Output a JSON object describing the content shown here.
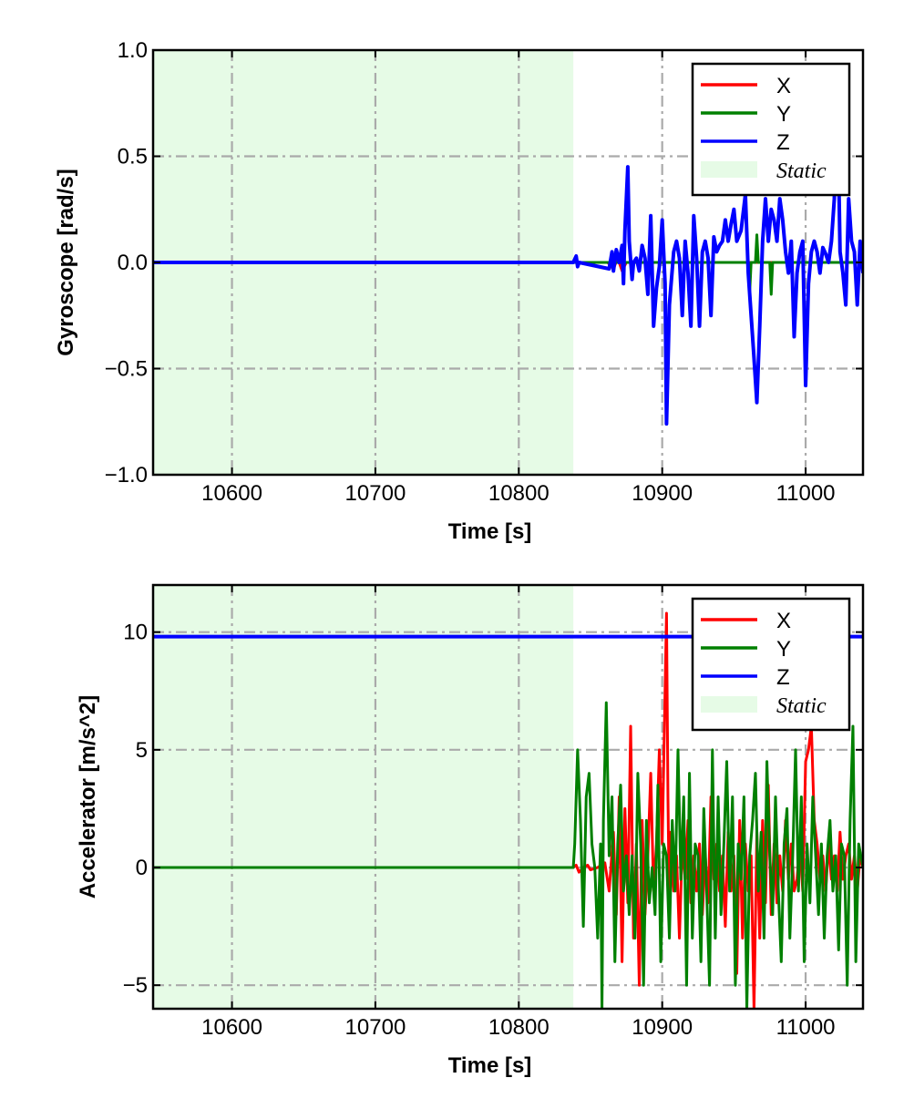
{
  "chart_data": [
    {
      "type": "line",
      "ylabel": "Gyroscope [rad/s]",
      "xlabel": "Time [s]",
      "xlim": [
        10545,
        11040
      ],
      "ylim": [
        -1.0,
        1.0
      ],
      "xticks": [
        10600,
        10700,
        10800,
        10900,
        11000
      ],
      "xtick_labels": [
        "10600",
        "10700",
        "10800",
        "10900",
        "11000"
      ],
      "yticks": [
        -1.0,
        -0.5,
        0.0,
        0.5,
        1.0
      ],
      "ytick_labels": [
        "−1.0",
        "−0.5",
        "0.0",
        "0.5",
        "1.0"
      ],
      "grid": true,
      "legend_position": "top-right",
      "static_region": {
        "label": "Static",
        "x_start": 10545,
        "x_end": 10838,
        "color": "#e6fbe6"
      },
      "series": [
        {
          "name": "X",
          "color": "#ff0000",
          "x": [
            10545,
            10838,
            10862,
            10866,
            10869,
            10872,
            10875,
            10880,
            11040
          ],
          "y": [
            0.0,
            0.0,
            0.0,
            -0.03,
            0.02,
            -0.04,
            0.0,
            0.0,
            0.0
          ]
        },
        {
          "name": "Y",
          "color": "#008000",
          "x": [
            10545,
            10838,
            10950,
            10960,
            10961,
            10962,
            10965,
            10966,
            10967,
            10970,
            10975,
            10976,
            10977,
            10978,
            11040
          ],
          "y": [
            0.0,
            0.0,
            0.0,
            0.0,
            -0.14,
            0.0,
            0.0,
            0.13,
            0.0,
            0.0,
            0.0,
            -0.15,
            0.0,
            0.0,
            0.0
          ]
        },
        {
          "name": "Z",
          "color": "#0000ff",
          "x": [
            10545,
            10838,
            10840,
            10841,
            10842,
            10863,
            10865,
            10866,
            10868,
            10870,
            10872,
            10873,
            10874,
            10876,
            10877,
            10879,
            10880,
            10882,
            10884,
            10886,
            10888,
            10890,
            10892,
            10894,
            10896,
            10898,
            10900,
            10902,
            10903,
            10905,
            10908,
            10910,
            10912,
            10914,
            10916,
            10918,
            10920,
            10922,
            10924,
            10926,
            10928,
            10930,
            10932,
            10934,
            10936,
            10938,
            10940,
            10942,
            10944,
            10946,
            10948,
            10950,
            10952,
            10955,
            10958,
            10960,
            10962,
            10964,
            10966,
            10968,
            10970,
            10972,
            10974,
            10976,
            10978,
            10980,
            10982,
            10984,
            10986,
            10988,
            10990,
            10992,
            10994,
            10996,
            10998,
            11000,
            11002,
            11004,
            11006,
            11008,
            11010,
            11012,
            11014,
            11016,
            11018,
            11020,
            11022,
            11024,
            11026,
            11028,
            11030,
            11032,
            11034,
            11036,
            11038,
            11040
          ],
          "y": [
            0.0,
            0.0,
            0.03,
            -0.02,
            0.0,
            -0.03,
            0.05,
            -0.04,
            0.06,
            0.0,
            0.08,
            -0.1,
            0.15,
            0.45,
            0.1,
            -0.08,
            0.0,
            0.02,
            -0.04,
            0.08,
            0.02,
            -0.15,
            0.22,
            -0.3,
            -0.12,
            -0.02,
            0.2,
            -0.1,
            -0.76,
            -0.2,
            0.05,
            0.1,
            0.02,
            -0.25,
            0.1,
            -0.05,
            -0.3,
            0.22,
            0.02,
            -0.3,
            0.05,
            0.1,
            0.02,
            -0.25,
            0.12,
            0.05,
            0.08,
            0.1,
            0.2,
            0.1,
            0.18,
            0.25,
            0.1,
            0.15,
            0.32,
            -0.05,
            -0.25,
            -0.45,
            -0.66,
            -0.3,
            0.1,
            0.3,
            0.1,
            0.25,
            0.2,
            0.1,
            0.3,
            0.2,
            0.05,
            -0.05,
            0.1,
            -0.35,
            -0.05,
            0.05,
            0.1,
            -0.58,
            -0.1,
            0.05,
            0.1,
            0.05,
            -0.05,
            0.07,
            0.04,
            0.0,
            0.1,
            0.3,
            0.85,
            0.05,
            -0.05,
            -0.2,
            0.3,
            0.1,
            0.05,
            -0.2,
            0.1,
            -0.05
          ]
        }
      ]
    },
    {
      "type": "line",
      "ylabel": "Accelerator [m/s^2]",
      "xlabel": "Time [s]",
      "xlim": [
        10545,
        11040
      ],
      "ylim": [
        -6,
        12
      ],
      "xticks": [
        10600,
        10700,
        10800,
        10900,
        11000
      ],
      "xtick_labels": [
        "10600",
        "10700",
        "10800",
        "10900",
        "11000"
      ],
      "yticks": [
        -5,
        0,
        5,
        10
      ],
      "ytick_labels": [
        "−5",
        "0",
        "5",
        "10"
      ],
      "grid": true,
      "legend_position": "top-right",
      "static_region": {
        "label": "Static",
        "x_start": 10545,
        "x_end": 10838,
        "color": "#e6fbe6"
      },
      "series": [
        {
          "name": "X",
          "color": "#ff0000",
          "x": [
            10545,
            10838,
            10840,
            10842,
            10845,
            10848,
            10850,
            10855,
            10860,
            10863,
            10866,
            10868,
            10870,
            10872,
            10874,
            10876,
            10878,
            10880,
            10882,
            10884,
            10886,
            10888,
            10890,
            10892,
            10894,
            10896,
            10898,
            10900,
            10902,
            10903,
            10904,
            10905,
            10906,
            10908,
            10910,
            10912,
            10914,
            10916,
            10918,
            10920,
            10922,
            10924,
            10926,
            10928,
            10930,
            10932,
            10934,
            10936,
            10938,
            10940,
            10942,
            10944,
            10946,
            10948,
            10950,
            10952,
            10954,
            10956,
            10958,
            10960,
            10962,
            10964,
            10966,
            10968,
            10970,
            10972,
            10974,
            10976,
            10978,
            10980,
            10982,
            10984,
            10986,
            10988,
            10990,
            10992,
            10994,
            10996,
            10998,
            11000,
            11002,
            11004,
            11006,
            11008,
            11010,
            11012,
            11014,
            11016,
            11018,
            11020,
            11022,
            11024,
            11026,
            11028,
            11030,
            11032,
            11034,
            11036,
            11038,
            11040
          ],
          "y": [
            0.0,
            0.0,
            0.1,
            -0.2,
            0.0,
            0.1,
            -0.1,
            0.0,
            0.2,
            -1.0,
            1.5,
            -2.0,
            3.0,
            -4.0,
            2.5,
            -1.5,
            6.0,
            -3.0,
            1.0,
            -5.0,
            2.0,
            -2.0,
            0.5,
            4.0,
            -1.0,
            1.0,
            5.0,
            1.0,
            7.5,
            10.8,
            3.0,
            -2.0,
            1.5,
            -1.0,
            0.5,
            -3.0,
            1.0,
            -0.5,
            2.0,
            -1.5,
            0.5,
            -1.0,
            1.0,
            -2.0,
            0.5,
            -1.5,
            3.0,
            -0.5,
            1.0,
            -1.0,
            0.5,
            -2.5,
            1.5,
            -1.0,
            0.5,
            -4.5,
            2.0,
            -3.0,
            1.0,
            -1.0,
            0.5,
            -6.0,
            1.5,
            -3.0,
            2.0,
            -1.5,
            3.5,
            -2.0,
            1.0,
            -1.5,
            0.5,
            -1.0,
            2.0,
            -0.5,
            1.0,
            -1.0,
            -0.5,
            1.0,
            -1.0,
            4.5,
            5.0,
            6.0,
            2.0,
            1.0,
            -0.5,
            0.5,
            -1.0,
            1.0,
            -0.5,
            0.5,
            -1.0,
            1.5,
            -0.5,
            0.5,
            1.0,
            -0.5,
            0.5,
            -1.0,
            0.5,
            0.0
          ]
        },
        {
          "name": "Y",
          "color": "#008000",
          "x": [
            10545,
            10838,
            10839,
            10841,
            10843,
            10845,
            10847,
            10849,
            10851,
            10853,
            10855,
            10857,
            10858,
            10859,
            10861,
            10863,
            10865,
            10867,
            10869,
            10871,
            10873,
            10875,
            10877,
            10879,
            10881,
            10883,
            10885,
            10887,
            10889,
            10891,
            10893,
            10895,
            10897,
            10899,
            10901,
            10903,
            10905,
            10907,
            10909,
            10911,
            10913,
            10915,
            10917,
            10919,
            10921,
            10923,
            10925,
            10927,
            10929,
            10931,
            10933,
            10935,
            10937,
            10939,
            10941,
            10943,
            10945,
            10947,
            10949,
            10951,
            10953,
            10955,
            10957,
            10959,
            10961,
            10963,
            10965,
            10967,
            10969,
            10971,
            10973,
            10975,
            10977,
            10979,
            10981,
            10983,
            10985,
            10987,
            10989,
            10991,
            10993,
            10995,
            10997,
            10999,
            11001,
            11003,
            11005,
            11007,
            11009,
            11011,
            11013,
            11015,
            11017,
            11019,
            11021,
            11023,
            11025,
            11027,
            11029,
            11031,
            11033,
            11035,
            11037,
            11040
          ],
          "y": [
            0.0,
            0.0,
            1.0,
            5.0,
            2.0,
            -2.5,
            3.0,
            4.0,
            1.0,
            0.0,
            -3.0,
            1.0,
            -6.0,
            2.0,
            7.0,
            0.5,
            3.0,
            -4.0,
            1.0,
            3.5,
            -1.0,
            0.5,
            -2.0,
            0.5,
            -3.0,
            4.0,
            1.0,
            -5.0,
            2.0,
            -1.5,
            0.0,
            -2.0,
            3.5,
            -4.0,
            1.0,
            0.5,
            -3.0,
            2.0,
            -1.0,
            5.0,
            -0.5,
            3.0,
            -5.0,
            4.0,
            -3.0,
            1.0,
            0.5,
            -4.0,
            2.5,
            -1.0,
            -5.0,
            5.0,
            -3.0,
            3.0,
            -2.0,
            1.0,
            4.5,
            -1.0,
            3.0,
            -5.0,
            1.0,
            -0.5,
            3.0,
            -6.0,
            0.5,
            2.0,
            4.0,
            -1.0,
            1.5,
            -3.0,
            4.5,
            0.5,
            -2.0,
            3.0,
            -1.0,
            -4.0,
            1.0,
            2.5,
            -3.0,
            0.5,
            5.0,
            -1.0,
            3.0,
            -4.0,
            1.0,
            -1.5,
            3.0,
            0.5,
            -2.0,
            1.0,
            -3.0,
            0.5,
            2.0,
            -1.0,
            0.5,
            -3.5,
            1.0,
            0.5,
            -5.0,
            2.0,
            6.0,
            -4.0,
            1.0,
            0.0
          ]
        },
        {
          "name": "Z",
          "color": "#0000ff",
          "x": [
            10545,
            10700,
            10838,
            10900,
            11000,
            11040
          ],
          "y": [
            9.81,
            9.81,
            9.81,
            9.81,
            9.81,
            9.81
          ]
        }
      ]
    }
  ]
}
